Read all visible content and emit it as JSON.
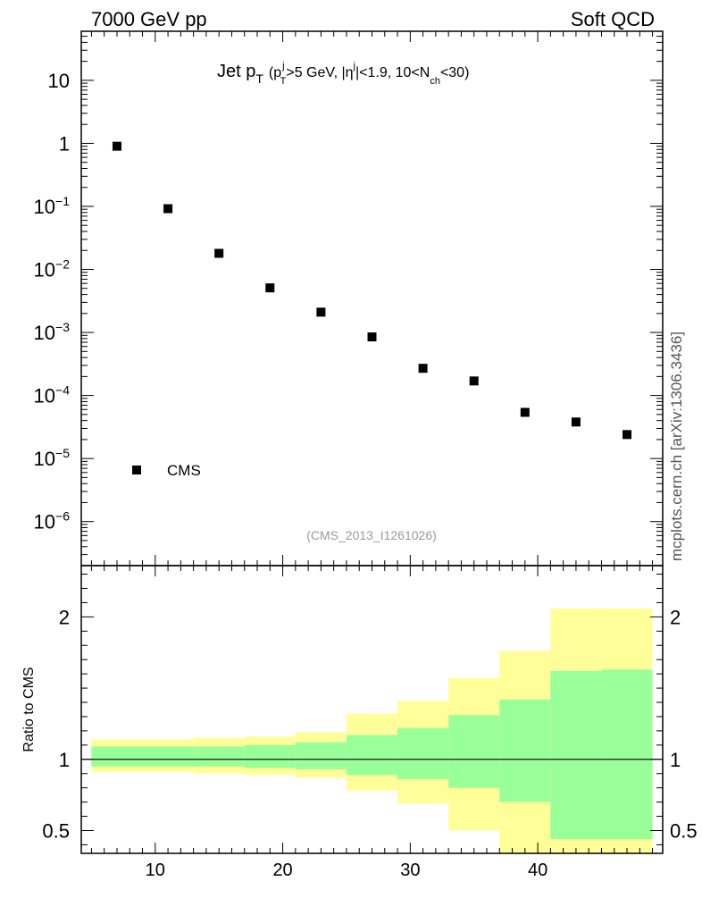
{
  "header": {
    "left": "7000 GeV pp",
    "right": "Soft QCD"
  },
  "side_note": "mcplots.cern.ch [arXiv:1306.3436]",
  "chart_data": [
    {
      "type": "scatter",
      "panel": "main",
      "title": {
        "main": "Jet p",
        "main_sub": "T",
        "open": "(p",
        "p_sup": "j",
        "p_sub": "T",
        "cut1": ">5 GeV, |",
        "eta": "η",
        "eta_sup": "j",
        "cut2": "|<1.9, 10<N",
        "n_sub": "ch",
        "close": "<30)"
      },
      "analysis_label": "(CMS_2013_I1261026)",
      "xlim": [
        4.2,
        49.8
      ],
      "ylog": true,
      "ylim": [
        2e-07,
        60
      ],
      "y_tick_labels": [
        {
          "exp": 1,
          "text": "10"
        },
        {
          "exp": 0,
          "text": "1"
        },
        {
          "exp": -1,
          "base": "10",
          "sup": "−1"
        },
        {
          "exp": -2,
          "base": "10",
          "sup": "−2"
        },
        {
          "exp": -3,
          "base": "10",
          "sup": "−3"
        },
        {
          "exp": -4,
          "base": "10",
          "sup": "−4"
        },
        {
          "exp": -5,
          "base": "10",
          "sup": "−5"
        },
        {
          "exp": -6,
          "base": "10",
          "sup": "−6"
        }
      ],
      "legend": {
        "label": "CMS",
        "position": "bottom-left"
      },
      "series": [
        {
          "name": "CMS",
          "marker": "square",
          "color": "#000000",
          "x": [
            7,
            11,
            15,
            19,
            23,
            27,
            31,
            35,
            39,
            43,
            47
          ],
          "y": [
            0.9,
            0.092,
            0.018,
            0.0051,
            0.0021,
            0.00085,
            0.00027,
            0.00017,
            5.4e-05,
            3.8e-05,
            2.4e-05
          ]
        }
      ]
    },
    {
      "type": "area",
      "panel": "ratio",
      "ylabel": "Ratio to CMS",
      "xlim": [
        4.2,
        49.8
      ],
      "ylim": [
        0.34,
        2.36
      ],
      "x_ticks": [
        10,
        20,
        30,
        40
      ],
      "y_ticks": [
        0.5,
        1,
        2
      ],
      "x_tick_labels": [
        "10",
        "20",
        "30",
        "40"
      ],
      "y_tick_labels": [
        "0.5",
        "1",
        "2"
      ],
      "reference_line": 1,
      "bins": [
        {
          "lo": 5,
          "hi": 9,
          "stat_lo": 0.95,
          "stat_hi": 1.09,
          "tot_lo": 0.91,
          "tot_hi": 1.14
        },
        {
          "lo": 9,
          "hi": 13,
          "stat_lo": 0.95,
          "stat_hi": 1.09,
          "tot_lo": 0.91,
          "tot_hi": 1.14
        },
        {
          "lo": 13,
          "hi": 17,
          "stat_lo": 0.95,
          "stat_hi": 1.09,
          "tot_lo": 0.9,
          "tot_hi": 1.15
        },
        {
          "lo": 17,
          "hi": 21,
          "stat_lo": 0.94,
          "stat_hi": 1.1,
          "tot_lo": 0.89,
          "tot_hi": 1.16
        },
        {
          "lo": 21,
          "hi": 25,
          "stat_lo": 0.93,
          "stat_hi": 1.12,
          "tot_lo": 0.87,
          "tot_hi": 1.19
        },
        {
          "lo": 25,
          "hi": 29,
          "stat_lo": 0.89,
          "stat_hi": 1.17,
          "tot_lo": 0.78,
          "tot_hi": 1.32
        },
        {
          "lo": 29,
          "hi": 33,
          "stat_lo": 0.86,
          "stat_hi": 1.22,
          "tot_lo": 0.69,
          "tot_hi": 1.41
        },
        {
          "lo": 33,
          "hi": 37,
          "stat_lo": 0.8,
          "stat_hi": 1.31,
          "tot_lo": 0.5,
          "tot_hi": 1.57
        },
        {
          "lo": 37,
          "hi": 41,
          "stat_lo": 0.7,
          "stat_hi": 1.42,
          "tot_lo": 0.33,
          "tot_hi": 1.76
        },
        {
          "lo": 41,
          "hi": 45,
          "stat_lo": 0.44,
          "stat_hi": 1.62,
          "tot_lo": 0.33,
          "tot_hi": 2.06
        },
        {
          "lo": 45,
          "hi": 49,
          "stat_lo": 0.44,
          "stat_hi": 1.63,
          "tot_lo": 0.33,
          "tot_hi": 2.06
        }
      ],
      "colors": {
        "stat": "#99ff99",
        "total": "#ffff99",
        "line": "#000000"
      }
    }
  ]
}
